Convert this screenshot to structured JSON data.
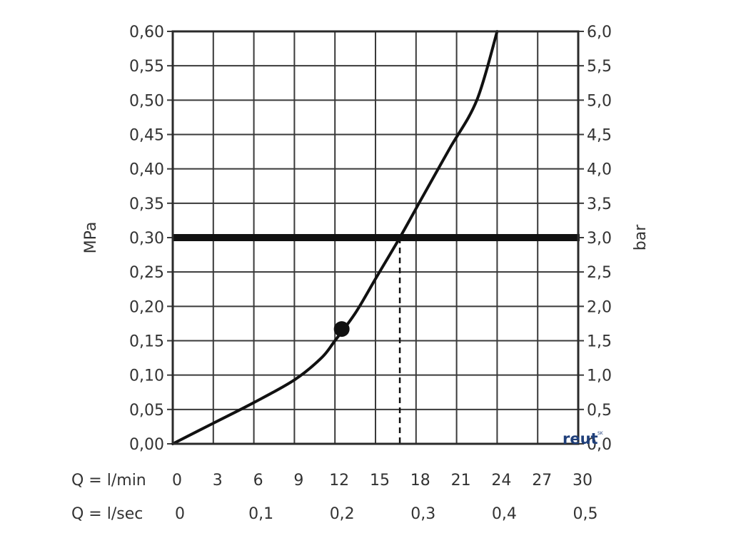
{
  "chart_data": {
    "type": "line",
    "left_axis": {
      "label": "MPa",
      "ylim": [
        0,
        0.6
      ],
      "ticks": [
        "0,00",
        "0,05",
        "0,10",
        "0,15",
        "0,20",
        "0,25",
        "0,30",
        "0,35",
        "0,40",
        "0,45",
        "0,50",
        "0,55",
        "0,60"
      ]
    },
    "right_axis": {
      "label": "bar",
      "ylim": [
        0,
        6
      ],
      "ticks": [
        "0,0",
        "0,5",
        "1,0",
        "1,5",
        "2,0",
        "2,5",
        "3,0",
        "3,5",
        "4,0",
        "4,5",
        "5,0",
        "5,5",
        "6,0"
      ]
    },
    "x_axis": {
      "xlim": [
        0,
        30
      ],
      "row1_label": "Q = l/min",
      "row1_ticks": [
        "0",
        "3",
        "6",
        "9",
        "12",
        "15",
        "18",
        "21",
        "24",
        "27",
        "30"
      ],
      "row2_label": "Q = l/sec",
      "row2_ticks": [
        {
          "x": 0,
          "label": "0"
        },
        {
          "x": 6,
          "label": "0,1"
        },
        {
          "x": 12,
          "label": "0,2"
        },
        {
          "x": 18,
          "label": "0,3"
        },
        {
          "x": 24,
          "label": "0,4"
        },
        {
          "x": 30,
          "label": "0,5"
        }
      ]
    },
    "grid": true,
    "series": [
      {
        "x": [
          0,
          3,
          6,
          9,
          11,
          12,
          13.5,
          15,
          16.8,
          18.5,
          20.5,
          22.5,
          24
        ],
        "y": [
          0,
          0.03,
          0.06,
          0.093,
          0.125,
          0.15,
          0.19,
          0.24,
          0.3,
          0.36,
          0.43,
          0.5,
          0.6
        ]
      }
    ],
    "marker": {
      "x": 12.5,
      "y": 0.167
    },
    "reference_line": {
      "y": 0.3
    },
    "drop_line": {
      "x": 16.8,
      "y_from": 0,
      "y_to": 0.3
    }
  },
  "watermark": {
    "text": "reut",
    "superscript": "SK"
  }
}
